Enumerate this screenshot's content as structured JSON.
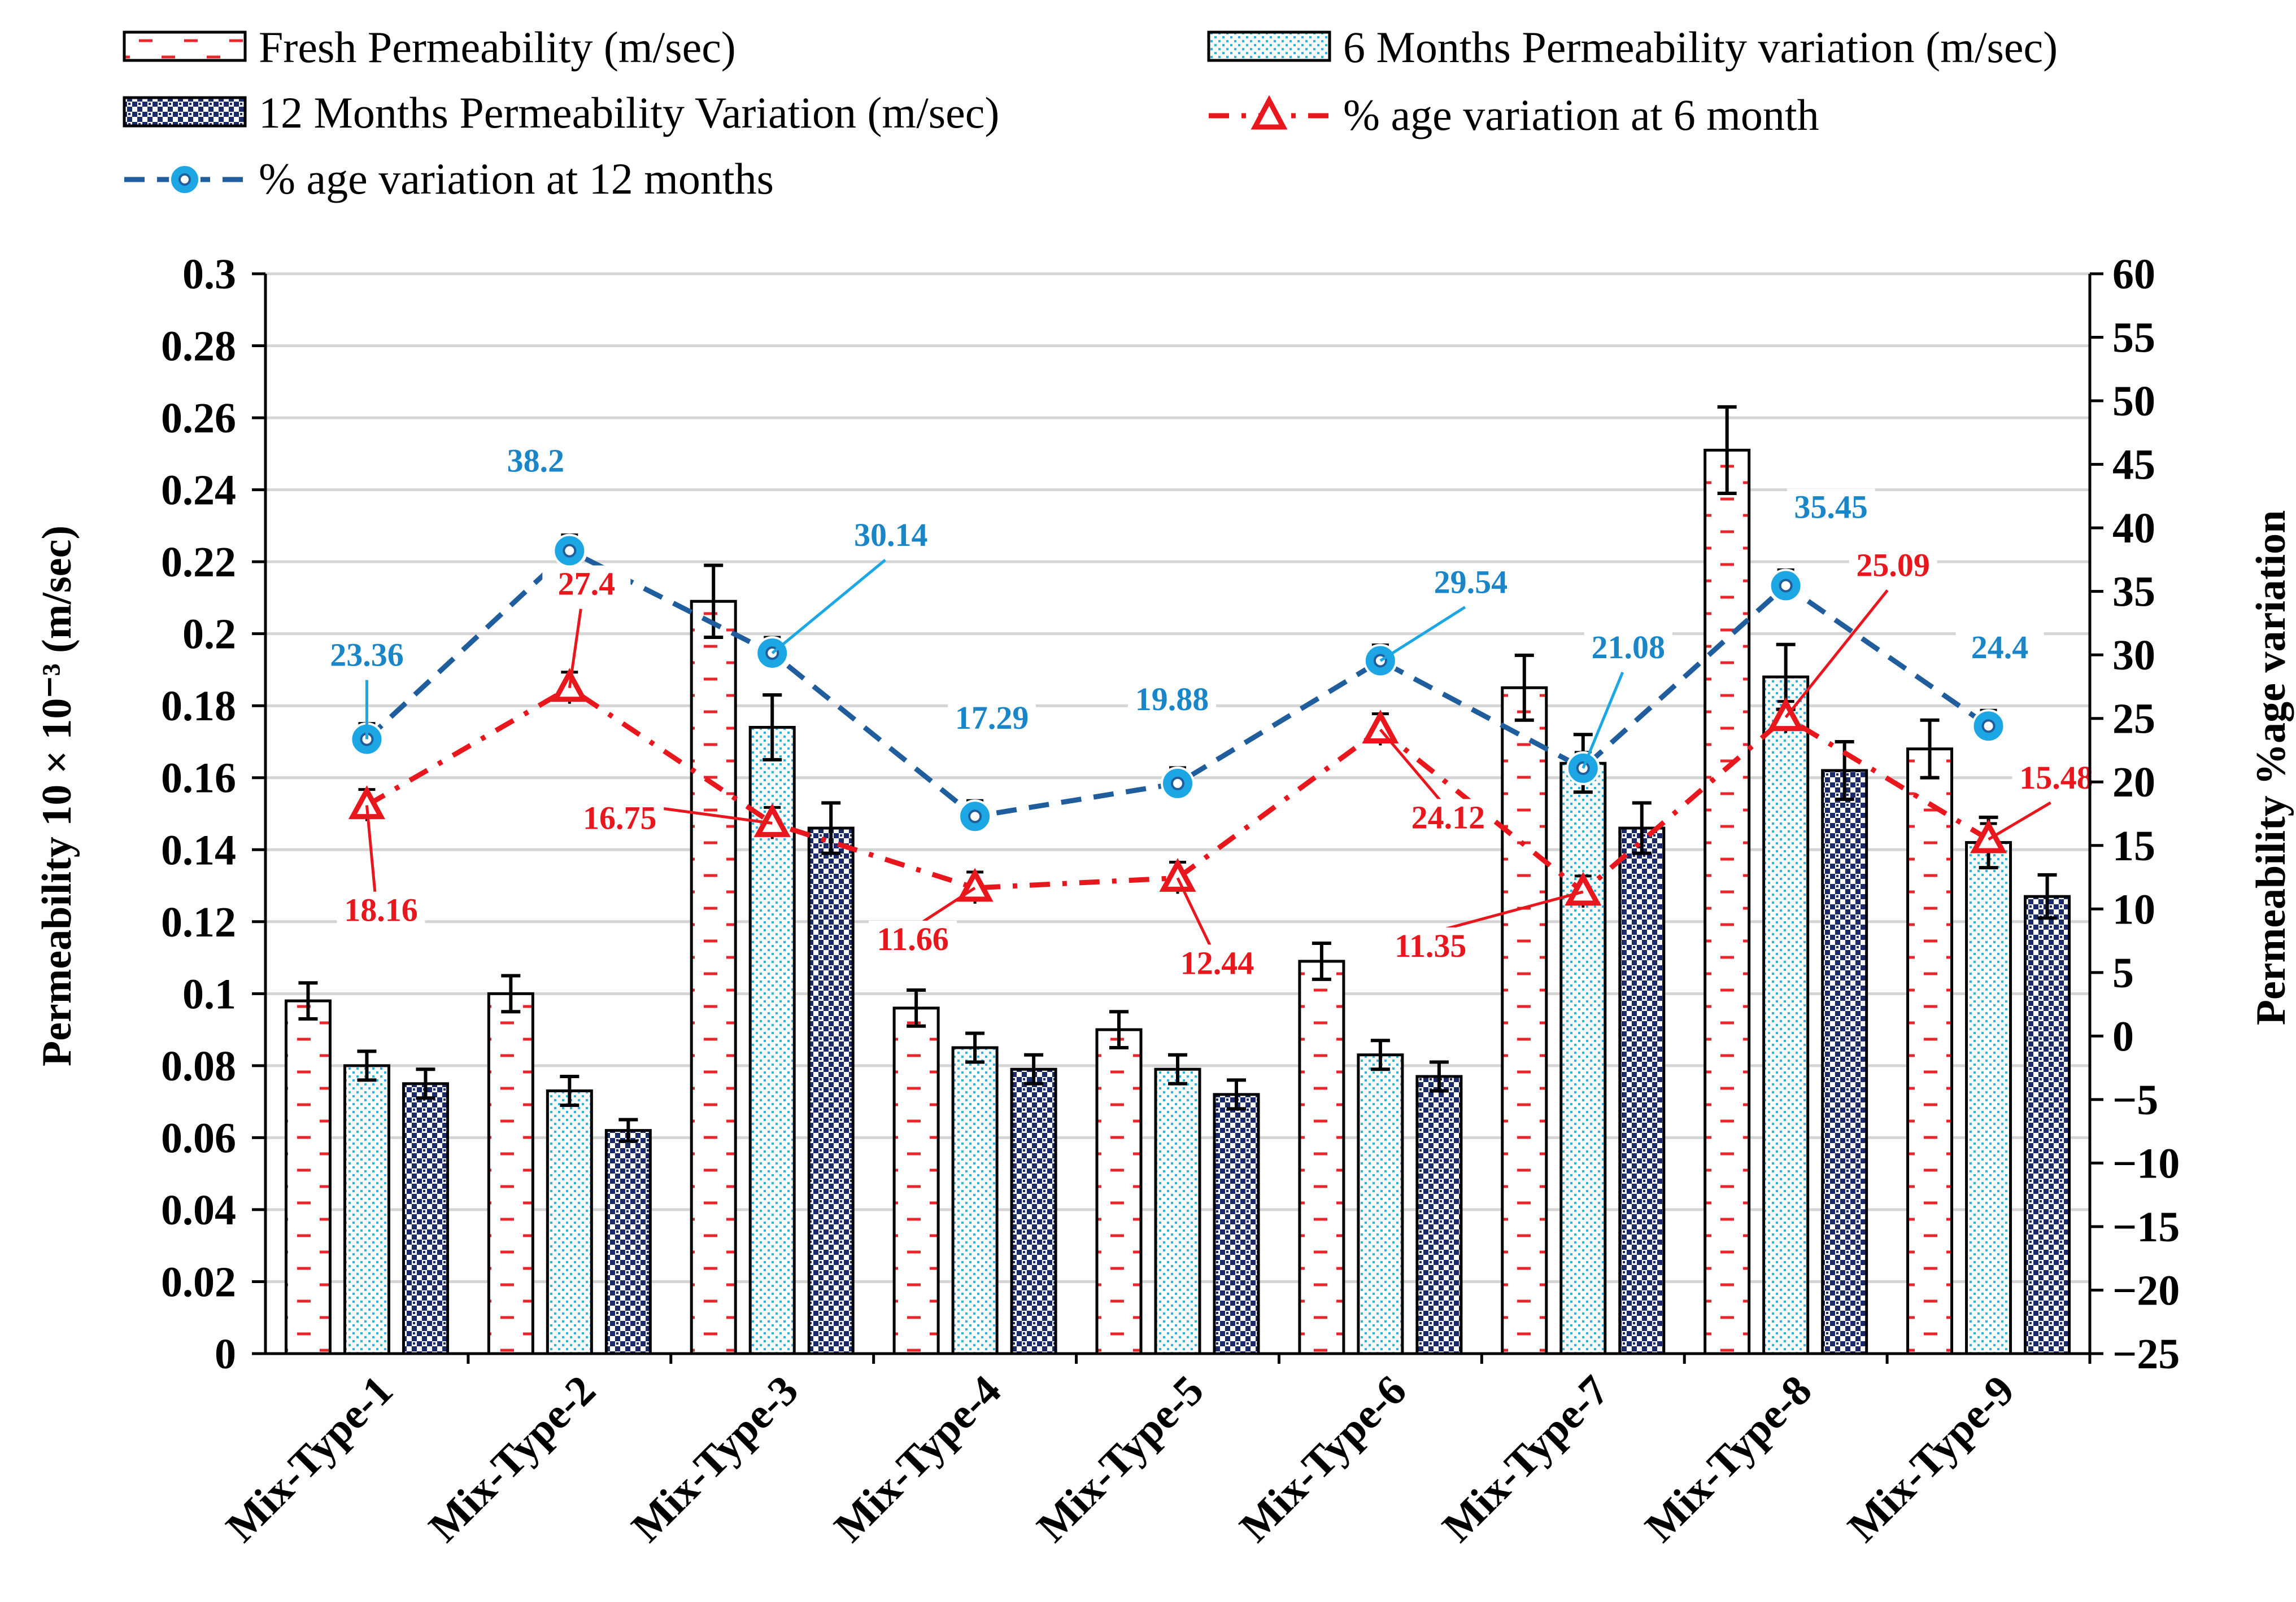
{
  "chart_data": {
    "type": "bar",
    "categories": [
      "Mix-Type-1",
      "Mix-Type-2",
      "Mix-Type-3",
      "Mix-Type-4",
      "Mix-Type-5",
      "Mix-Type-6",
      "Mix-Type-7",
      "Mix-Type-8",
      "Mix-Type-9"
    ],
    "y_left": {
      "label": "Permeability 10 × 10⁻³ (m/sec)",
      "lim": [
        0,
        0.3
      ],
      "ticks": [
        "0",
        "0.02",
        "0.04",
        "0.06",
        "0.08",
        "0.1",
        "0.12",
        "0.14",
        "0.16",
        "0.18",
        "0.2",
        "0.22",
        "0.24",
        "0.26",
        "0.28",
        "0.3"
      ]
    },
    "y_right": {
      "label": "Permeability %age variation",
      "lim": [
        -25,
        60
      ],
      "ticks": [
        "−25",
        "−20",
        "−15",
        "−10",
        "−5",
        "0",
        "5",
        "10",
        "15",
        "20",
        "25",
        "30",
        "35",
        "40",
        "45",
        "50",
        "55",
        "60"
      ]
    },
    "grid": true,
    "legend_position": "top",
    "bar_series": [
      {
        "name": "Fresh Permeability (m/sec)",
        "values": [
          0.098,
          0.1,
          0.209,
          0.096,
          0.09,
          0.109,
          0.185,
          0.251,
          0.168
        ],
        "errors": [
          0.005,
          0.005,
          0.01,
          0.005,
          0.005,
          0.005,
          0.009,
          0.012,
          0.008
        ],
        "color": "#e8262c",
        "pattern": "dashes"
      },
      {
        "name": "6 Months Permeability variation (m/sec)",
        "values": [
          0.08,
          0.073,
          0.174,
          0.085,
          0.079,
          0.083,
          0.164,
          0.188,
          0.142
        ],
        "errors": [
          0.004,
          0.004,
          0.009,
          0.004,
          0.004,
          0.004,
          0.008,
          0.009,
          0.007
        ],
        "color": "#2ab4e6",
        "pattern": "dots"
      },
      {
        "name": "12 Months Permeability Variation (m/sec)",
        "values": [
          0.075,
          0.062,
          0.146,
          0.079,
          0.072,
          0.077,
          0.146,
          0.162,
          0.127
        ],
        "errors": [
          0.004,
          0.003,
          0.007,
          0.004,
          0.004,
          0.004,
          0.007,
          0.008,
          0.006
        ],
        "color": "#1b2a6b",
        "pattern": "checker"
      }
    ],
    "line_series": [
      {
        "name": "% age variation at 6 month",
        "values": [
          18.16,
          27.4,
          16.75,
          11.66,
          12.44,
          24.12,
          11.35,
          25.09,
          15.48
        ],
        "labels": [
          "18.16",
          "27.4",
          "16.75",
          "11.66",
          "12.44",
          "24.12",
          "11.35",
          "25.09",
          "15.48"
        ],
        "color": "#e8161d",
        "marker": "triangle"
      },
      {
        "name": "% age variation at 12 months",
        "values": [
          23.36,
          38.2,
          30.14,
          17.29,
          19.88,
          29.54,
          21.08,
          35.45,
          24.4
        ],
        "labels": [
          "23.36",
          "38.2",
          "30.14",
          "17.29",
          "19.88",
          "29.54",
          "21.08",
          "35.45",
          "24.4"
        ],
        "color": "#1f5d9c",
        "marker_color": "#1ca6e3",
        "marker": "circle"
      }
    ]
  }
}
